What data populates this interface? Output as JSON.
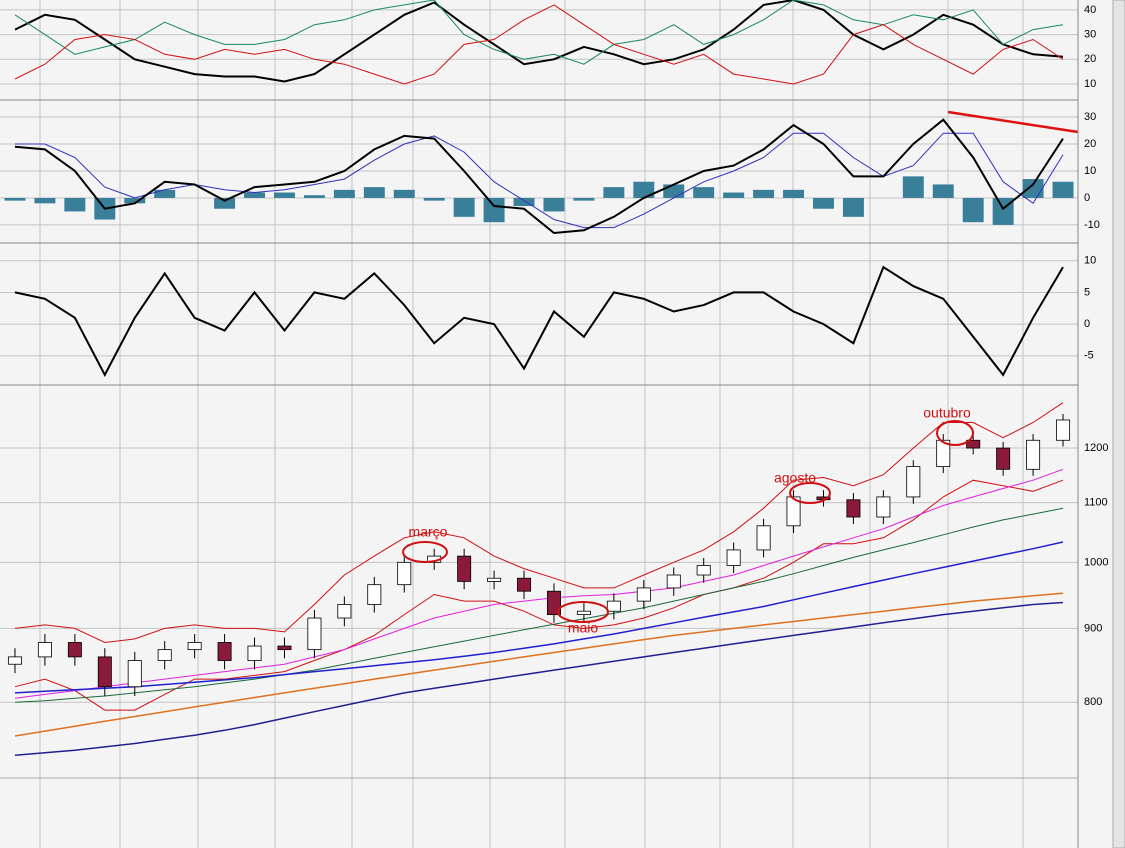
{
  "chart_data": [
    {
      "type": "line",
      "categories": [
        null,
        null,
        null,
        null,
        null,
        null,
        null,
        null,
        null,
        null,
        null,
        null,
        null,
        null,
        null,
        null,
        null,
        null,
        null,
        null,
        null,
        null,
        null,
        null,
        null,
        null,
        null,
        null,
        null,
        null,
        null,
        null,
        null,
        null,
        null,
        null
      ],
      "series": [
        {
          "color": "#000000",
          "width": 2,
          "values": [
            32,
            38,
            36,
            28,
            20,
            17,
            14,
            13,
            13,
            11,
            14,
            22,
            30,
            38,
            43,
            34,
            26,
            18,
            20,
            25,
            22,
            18,
            20,
            24,
            32,
            42,
            44,
            40,
            30,
            24,
            30,
            38,
            34,
            26,
            22,
            21
          ]
        },
        {
          "color": "#1a8a5a",
          "width": 1,
          "values": [
            38,
            30,
            22,
            25,
            28,
            35,
            30,
            26,
            26,
            28,
            34,
            36,
            40,
            42,
            44,
            30,
            24,
            20,
            22,
            18,
            26,
            28,
            34,
            26,
            30,
            36,
            44,
            42,
            36,
            34,
            38,
            36,
            40,
            26,
            32,
            34
          ]
        },
        {
          "color": "#d01010",
          "width": 1,
          "values": [
            12,
            18,
            28,
            30,
            28,
            22,
            20,
            24,
            22,
            24,
            20,
            18,
            14,
            10,
            14,
            26,
            28,
            36,
            42,
            34,
            26,
            22,
            18,
            22,
            14,
            12,
            10,
            14,
            30,
            34,
            26,
            20,
            14,
            24,
            28,
            20
          ]
        }
      ],
      "ylim": [
        3.5,
        44
      ],
      "yticks": [
        10,
        20,
        30,
        40
      ],
      "grid": true
    },
    {
      "type": "line",
      "categories": [
        null,
        null,
        null,
        null,
        null,
        null,
        null,
        null,
        null,
        null,
        null,
        null,
        null,
        null,
        null,
        null,
        null,
        null,
        null,
        null,
        null,
        null,
        null,
        null,
        null,
        null,
        null,
        null,
        null,
        null,
        null,
        null,
        null,
        null,
        null,
        null
      ],
      "series": [
        {
          "type": "bar",
          "color": "#3a7f9a",
          "values": [
            -1,
            -2,
            -5,
            -8,
            -2,
            3,
            0,
            -4,
            2,
            2,
            1,
            3,
            4,
            3,
            -1,
            -7,
            -9,
            -3,
            -5,
            -1,
            4,
            6,
            5,
            4,
            2,
            3,
            3,
            -4,
            -7,
            0,
            8,
            5,
            -9,
            -10,
            7,
            6
          ]
        },
        {
          "color": "#3030c0",
          "width": 1,
          "values": [
            20,
            20,
            15,
            4,
            0,
            3,
            5,
            3,
            2,
            3,
            5,
            7,
            14,
            20,
            23,
            17,
            6,
            -1,
            -8,
            -11,
            -11,
            -6,
            0,
            6,
            10,
            15,
            24,
            24,
            15,
            8,
            12,
            24,
            24,
            6,
            -2,
            16
          ]
        },
        {
          "color": "#000000",
          "width": 2,
          "values": [
            19,
            18,
            10,
            -4,
            -2,
            6,
            5,
            -1,
            4,
            5,
            6,
            10,
            18,
            23,
            22,
            10,
            -3,
            -4,
            -13,
            -12,
            -7,
            0,
            5,
            10,
            12,
            18,
            27,
            20,
            8,
            8,
            20,
            29,
            15,
            -4,
            5,
            22
          ]
        }
      ],
      "ylim": [
        -16.7,
        36.3
      ],
      "yticks": [
        -10,
        0,
        10,
        20,
        30
      ],
      "grid": true
    },
    {
      "type": "line",
      "categories": [
        null,
        null,
        null,
        null,
        null,
        null,
        null,
        null,
        null,
        null,
        null,
        null,
        null,
        null,
        null,
        null,
        null,
        null,
        null,
        null,
        null,
        null,
        null,
        null,
        null,
        null,
        null,
        null,
        null,
        null,
        null,
        null,
        null,
        null,
        null,
        null
      ],
      "series": [
        {
          "color": "#000000",
          "width": 2,
          "values": [
            5,
            4,
            1,
            -8,
            1,
            8,
            1,
            -1,
            5,
            -1,
            5,
            4,
            8,
            3,
            -3,
            1,
            0,
            -7,
            2,
            -2,
            5,
            4,
            2,
            3,
            5,
            5,
            2,
            0,
            -3,
            9,
            6,
            4,
            -2,
            -8,
            1,
            9
          ]
        }
      ],
      "ylim": [
        -9.6,
        12.8
      ],
      "yticks": [
        -5,
        0,
        5,
        10
      ],
      "grid": true
    },
    {
      "type": "candlestick",
      "categories": [
        null,
        null,
        null,
        null,
        null,
        null,
        null,
        null,
        null,
        null,
        null,
        null,
        null,
        null,
        null,
        null,
        null,
        null,
        null,
        null,
        null,
        null,
        null,
        null,
        null,
        null,
        null,
        null,
        null,
        null,
        null,
        null,
        null,
        null,
        null,
        null
      ],
      "open": [
        850,
        860,
        880,
        860,
        820,
        855,
        870,
        880,
        855,
        875,
        870,
        915,
        935,
        965,
        1000,
        1010,
        970,
        975,
        955,
        920,
        925,
        940,
        960,
        980,
        995,
        1020,
        1060,
        1110,
        1105,
        1075,
        1110,
        1165,
        1215,
        1200,
        1160,
        1215
      ],
      "high": [
        872,
        892,
        892,
        872,
        867,
        882,
        892,
        892,
        887,
        887,
        927,
        947,
        977,
        1012,
        1022,
        1022,
        987,
        987,
        967,
        937,
        952,
        972,
        992,
        1007,
        1032,
        1072,
        1122,
        1122,
        1117,
        1122,
        1177,
        1227,
        1227,
        1212,
        1227,
        1267
      ],
      "low": [
        838,
        848,
        848,
        808,
        808,
        843,
        858,
        843,
        843,
        858,
        858,
        903,
        923,
        953,
        988,
        958,
        958,
        943,
        908,
        908,
        913,
        928,
        948,
        968,
        983,
        1008,
        1048,
        1093,
        1063,
        1063,
        1098,
        1153,
        1188,
        1148,
        1148,
        1203
      ],
      "close": [
        860,
        880,
        860,
        820,
        855,
        870,
        880,
        855,
        875,
        870,
        915,
        935,
        965,
        1000,
        1010,
        970,
        975,
        955,
        920,
        925,
        940,
        960,
        980,
        995,
        1020,
        1060,
        1110,
        1105,
        1075,
        1110,
        1165,
        1215,
        1200,
        1160,
        1215,
        1255
      ],
      "up_color": "#ffffff",
      "down_color": "#8b1a3a",
      "series": [
        {
          "color": "#d01010",
          "width": 1,
          "values": [
            900,
            905,
            900,
            880,
            885,
            900,
            905,
            900,
            900,
            895,
            935,
            980,
            1010,
            1040,
            1050,
            1040,
            1010,
            990,
            975,
            960,
            960,
            980,
            1000,
            1020,
            1050,
            1090,
            1140,
            1145,
            1130,
            1150,
            1200,
            1250,
            1250,
            1220,
            1250,
            1290
          ]
        },
        {
          "color": "#d01010",
          "width": 1,
          "values": [
            820,
            830,
            815,
            790,
            790,
            810,
            830,
            830,
            835,
            840,
            855,
            870,
            890,
            920,
            950,
            940,
            940,
            925,
            905,
            900,
            905,
            915,
            930,
            950,
            960,
            975,
            1000,
            1030,
            1030,
            1040,
            1070,
            1110,
            1140,
            1130,
            1120,
            1140
          ]
        },
        {
          "color": "#e020e0",
          "width": 1,
          "values": [
            805,
            810,
            815,
            820,
            825,
            830,
            835,
            840,
            845,
            850,
            860,
            870,
            885,
            900,
            915,
            925,
            935,
            940,
            945,
            948,
            950,
            955,
            960,
            970,
            980,
            995,
            1010,
            1025,
            1040,
            1055,
            1075,
            1095,
            1110,
            1125,
            1140,
            1160
          ]
        },
        {
          "color": "#1a6a3a",
          "width": 1,
          "values": [
            800,
            802,
            805,
            808,
            812,
            816,
            820,
            825,
            830,
            836,
            842,
            850,
            858,
            866,
            874,
            882,
            890,
            898,
            906,
            914,
            922,
            930,
            940,
            950,
            960,
            970,
            982,
            995,
            1008,
            1020,
            1032,
            1045,
            1058,
            1070,
            1080,
            1090
          ]
        },
        {
          "color": "#2020d0",
          "width": 1.5,
          "values": [
            812,
            814,
            816,
            818,
            820,
            823,
            826,
            829,
            832,
            836,
            840,
            844,
            848,
            852,
            856,
            861,
            866,
            872,
            878,
            885,
            892,
            900,
            908,
            916,
            924,
            932,
            942,
            952,
            962,
            972,
            982,
            992,
            1002,
            1012,
            1022,
            1033
          ]
        },
        {
          "color": "#e07020",
          "width": 1.5,
          "values": [
            758,
            764,
            770,
            776,
            782,
            788,
            794,
            800,
            806,
            812,
            818,
            824,
            830,
            836,
            842,
            848,
            854,
            860,
            866,
            872,
            878,
            884,
            890,
            895,
            900,
            905,
            910,
            915,
            920,
            925,
            930,
            935,
            940,
            944,
            948,
            952
          ]
        },
        {
          "color": "#202090",
          "width": 1.5,
          "values": [
            735,
            738,
            741,
            745,
            749,
            754,
            759,
            765,
            772,
            780,
            788,
            796,
            804,
            812,
            818,
            824,
            830,
            836,
            842,
            848,
            854,
            860,
            866,
            872,
            878,
            884,
            890,
            896,
            902,
            908,
            914,
            920,
            925,
            930,
            935,
            938
          ]
        }
      ],
      "annotations": [
        "março",
        "maio",
        "agosto",
        "outubro"
      ],
      "ylim": [
        634,
        1327
      ],
      "log": true,
      "yticks": [
        800,
        900,
        1000,
        1100,
        1200
      ],
      "grid": true
    }
  ]
}
